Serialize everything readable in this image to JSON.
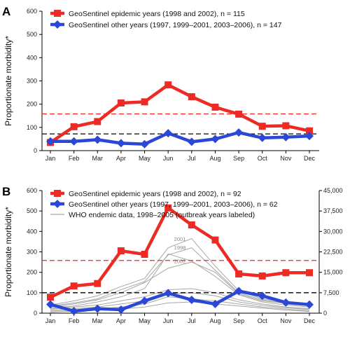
{
  "chart_data": [
    {
      "type": "line",
      "panel": "A",
      "ylabel": "Proportionate morbidity*",
      "ylim": [
        0,
        600
      ],
      "yticks": [
        0,
        100,
        200,
        300,
        400,
        500,
        600
      ],
      "categories": [
        "Jan",
        "Feb",
        "Mar",
        "Apr",
        "May",
        "Jun",
        "Jul",
        "Aug",
        "Sep",
        "Oct",
        "Nov",
        "Dec"
      ],
      "legend_position": "top-left",
      "series": [
        {
          "name": "GeoSentinel epidemic years (1998 and 2002), n = 115",
          "color": "#ee2a24",
          "marker": "square",
          "values": [
            35,
            103,
            125,
            205,
            210,
            283,
            232,
            187,
            157,
            105,
            107,
            85
          ]
        },
        {
          "name": "GeoSentinel other years (1997, 1999–2001, 2003–2006), n = 147",
          "color": "#2b47d6",
          "marker": "diamond",
          "values": [
            40,
            40,
            47,
            32,
            28,
            75,
            38,
            50,
            78,
            55,
            58,
            63
          ]
        }
      ],
      "reference_lines": [
        {
          "value": 158,
          "color": "#ee2a24",
          "style": "dashed"
        },
        {
          "value": 72,
          "color": "#000000",
          "style": "dashed"
        }
      ]
    },
    {
      "type": "line",
      "panel": "B",
      "ylabel": "Proportionate morbidity*",
      "ylim": [
        0,
        600
      ],
      "yticks": [
        0,
        100,
        200,
        300,
        400,
        500,
        600
      ],
      "y2lim": [
        0,
        45000
      ],
      "y2ticks": [
        "0",
        "7,500",
        "15,000",
        "22,500",
        "30,000",
        "37,500",
        "45,000"
      ],
      "categories": [
        "Jan",
        "Feb",
        "Mar",
        "Apr",
        "May",
        "Jun",
        "Jul",
        "Aug",
        "Sep",
        "Oct",
        "Nov",
        "Dec"
      ],
      "legend_position": "top-left",
      "series": [
        {
          "name": "GeoSentinel epidemic years  (1998 and 2002), n = 92",
          "color": "#ee2a24",
          "marker": "square",
          "values": [
            78,
            133,
            145,
            305,
            288,
            515,
            432,
            358,
            192,
            182,
            198,
            198
          ]
        },
        {
          "name": "GeoSentinel other years (1997, 1999–2001, 2003–2006), n = 62",
          "color": "#2b47d6",
          "marker": "diamond",
          "values": [
            43,
            10,
            22,
            17,
            60,
            98,
            65,
            45,
            108,
            85,
            52,
            42
          ]
        }
      ],
      "who_series": {
        "name": "WHO endemic data, 1998–2005 (outbreak years labeled)",
        "color": "#a6a6a6",
        "lines": [
          {
            "label": "2001",
            "values": [
              40,
              60,
              85,
              130,
              170,
              320,
              365,
              230,
              110,
              70,
              55,
              45
            ]
          },
          {
            "label": "1998",
            "values": [
              35,
              50,
              70,
              115,
              155,
              285,
              320,
              210,
              100,
              65,
              50,
              40
            ]
          },
          {
            "label": "2002",
            "values": [
              30,
              45,
              65,
              100,
              150,
              220,
              250,
              200,
              95,
              60,
              48,
              38
            ]
          },
          {
            "label": "",
            "values": [
              25,
              35,
              55,
              80,
              120,
              290,
              255,
              180,
              90,
              55,
              40,
              30
            ]
          },
          {
            "label": "",
            "values": [
              20,
              30,
              40,
              60,
              80,
              115,
              120,
              100,
              65,
              45,
              30,
              22
            ]
          },
          {
            "label": "",
            "values": [
              15,
              22,
              30,
              45,
              60,
              95,
              100,
              85,
              55,
              38,
              26,
              18
            ]
          },
          {
            "label": "",
            "values": [
              10,
              15,
              20,
              30,
              45,
              80,
              70,
              60,
              45,
              30,
              20,
              12
            ]
          },
          {
            "label": "",
            "values": [
              5,
              10,
              15,
              20,
              30,
              50,
              55,
              45,
              35,
              25,
              15,
              8
            ]
          }
        ]
      },
      "reference_lines": [
        {
          "value": 258,
          "color": "#ee2a24",
          "style": "dashed"
        },
        {
          "value": 100,
          "color": "#000000",
          "style": "dashed"
        }
      ]
    }
  ]
}
